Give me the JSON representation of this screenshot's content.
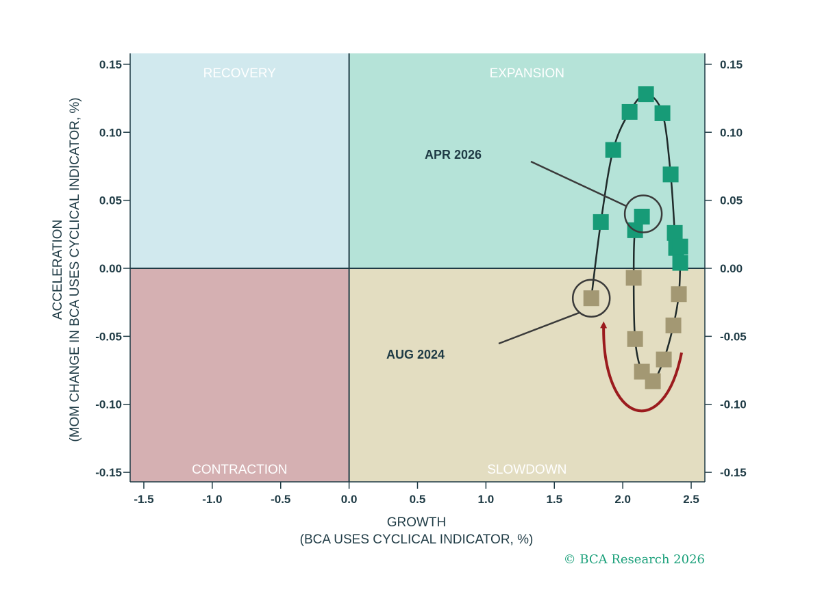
{
  "chart_data": {
    "type": "scatter",
    "xlabel": [
      "GROWTH",
      "(BCA USES CYCLICAL INDICATOR, %)"
    ],
    "ylabel": [
      "ACCELERATION",
      "(MOM CHANGE IN BCA USES CYCLICAL INDICATOR, %)"
    ],
    "xlim": [
      -1.6,
      2.6
    ],
    "ylim": [
      -0.157,
      0.158
    ],
    "xticks": [
      -1.5,
      -1.0,
      -0.5,
      0.0,
      0.5,
      1.0,
      1.5,
      2.0,
      2.5
    ],
    "xtick_labels": [
      "-1.5",
      "-1.0",
      "-0.5",
      "0.0",
      "0.5",
      "1.0",
      "1.5",
      "2.0",
      "2.5"
    ],
    "yticks": [
      0.15,
      0.1,
      0.05,
      0.0,
      -0.05,
      -0.1,
      -0.15
    ],
    "ytick_labels": [
      "0.15",
      "0.10",
      "0.05",
      "0.00",
      "-0.05",
      "-0.10",
      "-0.15"
    ],
    "quadrants": [
      {
        "name": "RECOVERY",
        "color": "#d1e9ee"
      },
      {
        "name": "EXPANSION",
        "color": "#b5e3d8"
      },
      {
        "name": "CONTRACTION",
        "color": "#d5b0b2"
      },
      {
        "name": "SLOWDOWN",
        "color": "#e3ddc1"
      }
    ],
    "series": {
      "x": [
        1.77,
        1.84,
        1.93,
        2.05,
        2.17,
        2.29,
        2.35,
        2.38,
        2.39,
        2.42,
        2.42,
        2.41,
        2.37,
        2.3,
        2.22,
        2.14,
        2.09,
        2.08,
        2.09,
        2.14
      ],
      "y": [
        -0.022,
        0.034,
        0.087,
        0.115,
        0.128,
        0.114,
        0.069,
        0.026,
        0.015,
        0.016,
        0.004,
        -0.019,
        -0.042,
        -0.067,
        -0.083,
        -0.076,
        -0.052,
        -0.007,
        0.028,
        0.038
      ],
      "point_colors": [
        "#a39873",
        "#179b77",
        "#179b77",
        "#179b77",
        "#179b77",
        "#179b77",
        "#179b77",
        "#179b77",
        "#179b77",
        "#179b77",
        "#179b77",
        "#a39873",
        "#a39873",
        "#a39873",
        "#a39873",
        "#a39873",
        "#a39873",
        "#a39873",
        "#179b77",
        "#179b77"
      ]
    },
    "annotations": [
      {
        "text": "APR 2026",
        "x": 2.15,
        "y": 0.04
      },
      {
        "text": "AUG 2024",
        "x": 1.77,
        "y": -0.022
      }
    ],
    "copyright": "© BCA Research 2026"
  }
}
